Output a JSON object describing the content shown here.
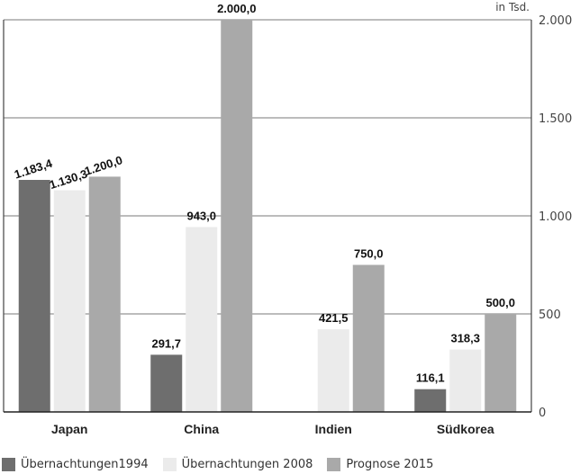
{
  "chart_data": {
    "type": "bar",
    "unit_label": "in Tsd.",
    "categories": [
      "Japan",
      "China",
      "Indien",
      "Südkorea"
    ],
    "series": [
      {
        "name": "Übernachtungen1994",
        "color": "#6e6e6e",
        "values": [
          1183.4,
          291.7,
          null,
          116.1
        ],
        "labels": [
          "1.183,4",
          "291,7",
          "",
          "116,1"
        ]
      },
      {
        "name": "Übernachtungen 2008",
        "color": "#ebebeb",
        "values": [
          1130.3,
          943.0,
          421.5,
          318.3
        ],
        "labels": [
          "1.130,3",
          "943,0",
          "421,5",
          "318,3"
        ]
      },
      {
        "name": "Prognose 2015",
        "color": "#a9a9a9",
        "values": [
          1200.0,
          2000.0,
          750.0,
          500.0
        ],
        "labels": [
          "1.200,0",
          "2.000,0",
          "750,0",
          "500,0"
        ]
      }
    ],
    "ylim": [
      0,
      2000
    ],
    "yticks": [
      0,
      500,
      1000,
      1500,
      2000
    ],
    "ytick_labels": [
      "0",
      "500",
      "1.000",
      "1.500",
      "2.000"
    ],
    "grid": true,
    "legend_position": "bottom-left"
  }
}
